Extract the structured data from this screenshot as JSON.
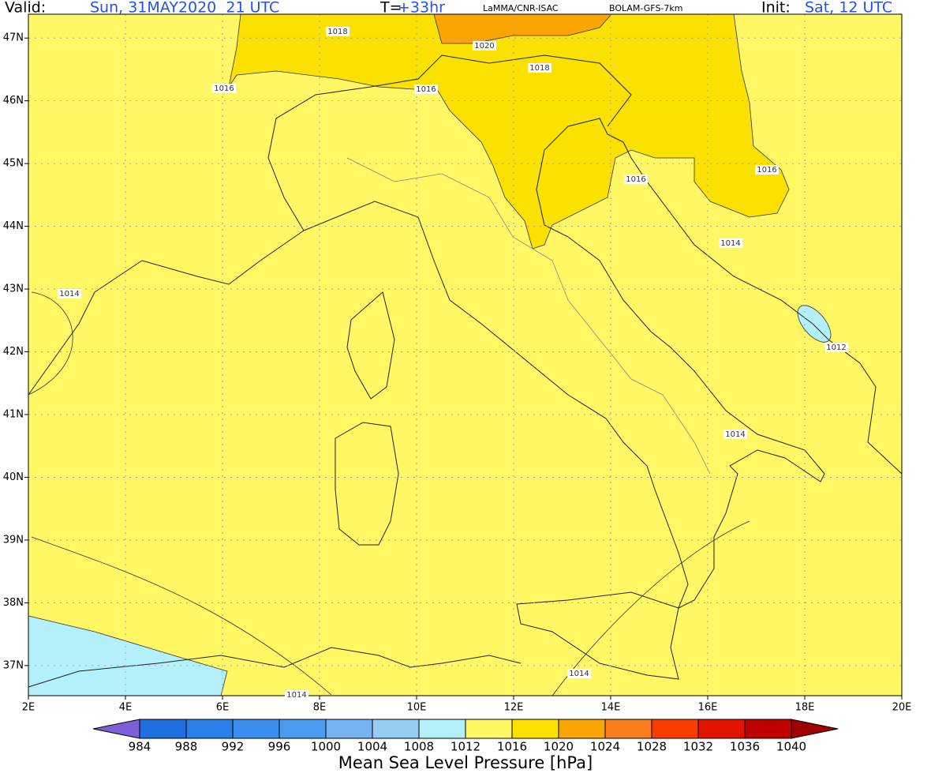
{
  "header": {
    "valid_label": "Valid:",
    "valid": "Sun, 31MAY2020  21 UTC",
    "t_label": "T=",
    "t": "+33hr",
    "source": "LaMMA/CNR-ISAC",
    "model": "BOLAM-GFS-7km",
    "init_label": "Init:",
    "init": "Sat, 12 UTC"
  },
  "map": {
    "xlim": [
      2,
      20
    ],
    "ylim": [
      36.52,
      47.38
    ],
    "xticks": [
      {
        "value": 2,
        "label": "2E"
      },
      {
        "value": 4,
        "label": "4E"
      },
      {
        "value": 6,
        "label": "6E"
      },
      {
        "value": 8,
        "label": "8E"
      },
      {
        "value": 10,
        "label": "10E"
      },
      {
        "value": 12,
        "label": "12E"
      },
      {
        "value": 14,
        "label": "14E"
      },
      {
        "value": 16,
        "label": "16E"
      },
      {
        "value": 18,
        "label": "18E"
      },
      {
        "value": 20,
        "label": "20E"
      }
    ],
    "yticks": [
      {
        "value": 47,
        "label": "47N"
      },
      {
        "value": 46,
        "label": "46N"
      },
      {
        "value": 45,
        "label": "45N"
      },
      {
        "value": 44,
        "label": "44N"
      },
      {
        "value": 43,
        "label": "43N"
      },
      {
        "value": 42,
        "label": "42N"
      },
      {
        "value": 41,
        "label": "41N"
      },
      {
        "value": 40,
        "label": "40N"
      },
      {
        "value": 39,
        "label": "39N"
      },
      {
        "value": 38,
        "label": "38N"
      },
      {
        "value": 37,
        "label": "37N"
      }
    ],
    "contour_labels": [
      1018,
      1020,
      1018,
      1016,
      1016,
      1016,
      1016,
      1014,
      1014,
      1012,
      1014,
      1014,
      1014
    ]
  },
  "colorbar": {
    "title": "Mean Sea Level Pressure [hPa]",
    "levels": [
      984,
      988,
      992,
      996,
      1000,
      1004,
      1008,
      1012,
      1016,
      1020,
      1024,
      1028,
      1032,
      1036,
      1040
    ],
    "colors": [
      "#7d60d8",
      "#1e6fe0",
      "#2a80ea",
      "#3a8eee",
      "#4a9cf0",
      "#74b2f2",
      "#96ccf4",
      "#b4f0fa",
      "#fff764",
      "#fae100",
      "#faa500",
      "#fa7d1e",
      "#fa3c00",
      "#e11400",
      "#c00000",
      "#a00000"
    ]
  }
}
